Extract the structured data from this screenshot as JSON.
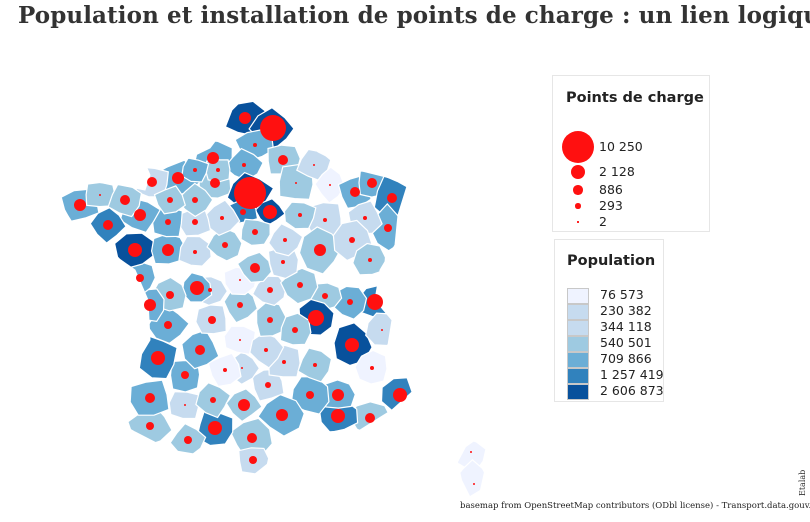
{
  "title": "Population et installation de points de charge : un lien logique",
  "legend_circles": {
    "title": "Points de charge",
    "items": [
      {
        "label": "10 250",
        "value": 10250
      },
      {
        "label": "2 128",
        "value": 2128
      },
      {
        "label": "886",
        "value": 886
      },
      {
        "label": "293",
        "value": 293
      },
      {
        "label": "2",
        "value": 2
      }
    ]
  },
  "legend_population": {
    "title": "Population",
    "items": [
      {
        "label": "76 573",
        "color": "#eff3ff"
      },
      {
        "label": "230 382",
        "color": "#c6dbef"
      },
      {
        "label": "344 118",
        "color": "#c6dbef"
      },
      {
        "label": "540 501",
        "color": "#9ecae1"
      },
      {
        "label": "709 866",
        "color": "#6baed6"
      },
      {
        "label": "1 257 419",
        "color": "#3182bd"
      },
      {
        "label": "2 606 873",
        "color": "#08519c"
      }
    ]
  },
  "colors": {
    "circle": "#ff1010",
    "border": "#ffffff"
  },
  "credit": "basemap from OpenStreetMap contributors (ODbl license) - Transport.data.gouv.fr",
  "brand": "Etalab"
}
